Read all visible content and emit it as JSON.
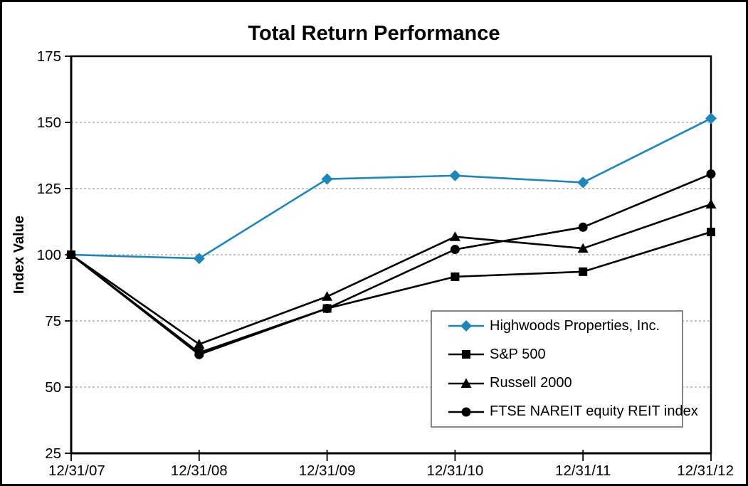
{
  "chart_data": {
    "type": "line",
    "title": "Total Return Performance",
    "xlabel": "",
    "ylabel": "Index Value",
    "categories": [
      "12/31/07",
      "12/31/08",
      "12/31/09",
      "12/31/10",
      "12/31/11",
      "12/31/12"
    ],
    "ylim": [
      25,
      175
    ],
    "yticks": [
      25,
      50,
      75,
      100,
      125,
      150,
      175
    ],
    "grid": "horizontal dashed gridlines at 50,75,100,125,150; solid black frame around plot",
    "legend_position": "inside-bottom-right",
    "series": [
      {
        "name": "Highwoods Properties, Inc.",
        "marker": "diamond",
        "color": "#1b87bd",
        "values": [
          100,
          98.6,
          128.6,
          129.9,
          127.3,
          151.5
        ]
      },
      {
        "name": "S&P 500",
        "marker": "square",
        "color": "#000000",
        "values": [
          100,
          63.0,
          79.7,
          91.7,
          93.6,
          108.6
        ]
      },
      {
        "name": "Russell 2000",
        "marker": "triangle",
        "color": "#000000",
        "values": [
          100,
          66.2,
          84.2,
          106.8,
          102.4,
          119.1
        ]
      },
      {
        "name": "FTSE NAREIT equity REIT index",
        "marker": "circle",
        "color": "#000000",
        "values": [
          100,
          62.3,
          79.7,
          102.0,
          110.4,
          130.5
        ]
      }
    ],
    "colors": {
      "background": "#ffffff",
      "outer_border": "#000000",
      "axis": "#000000",
      "gridline": "#a0a0a0",
      "legend_border": "#858585",
      "accent_blue": "#1b87bd"
    }
  }
}
